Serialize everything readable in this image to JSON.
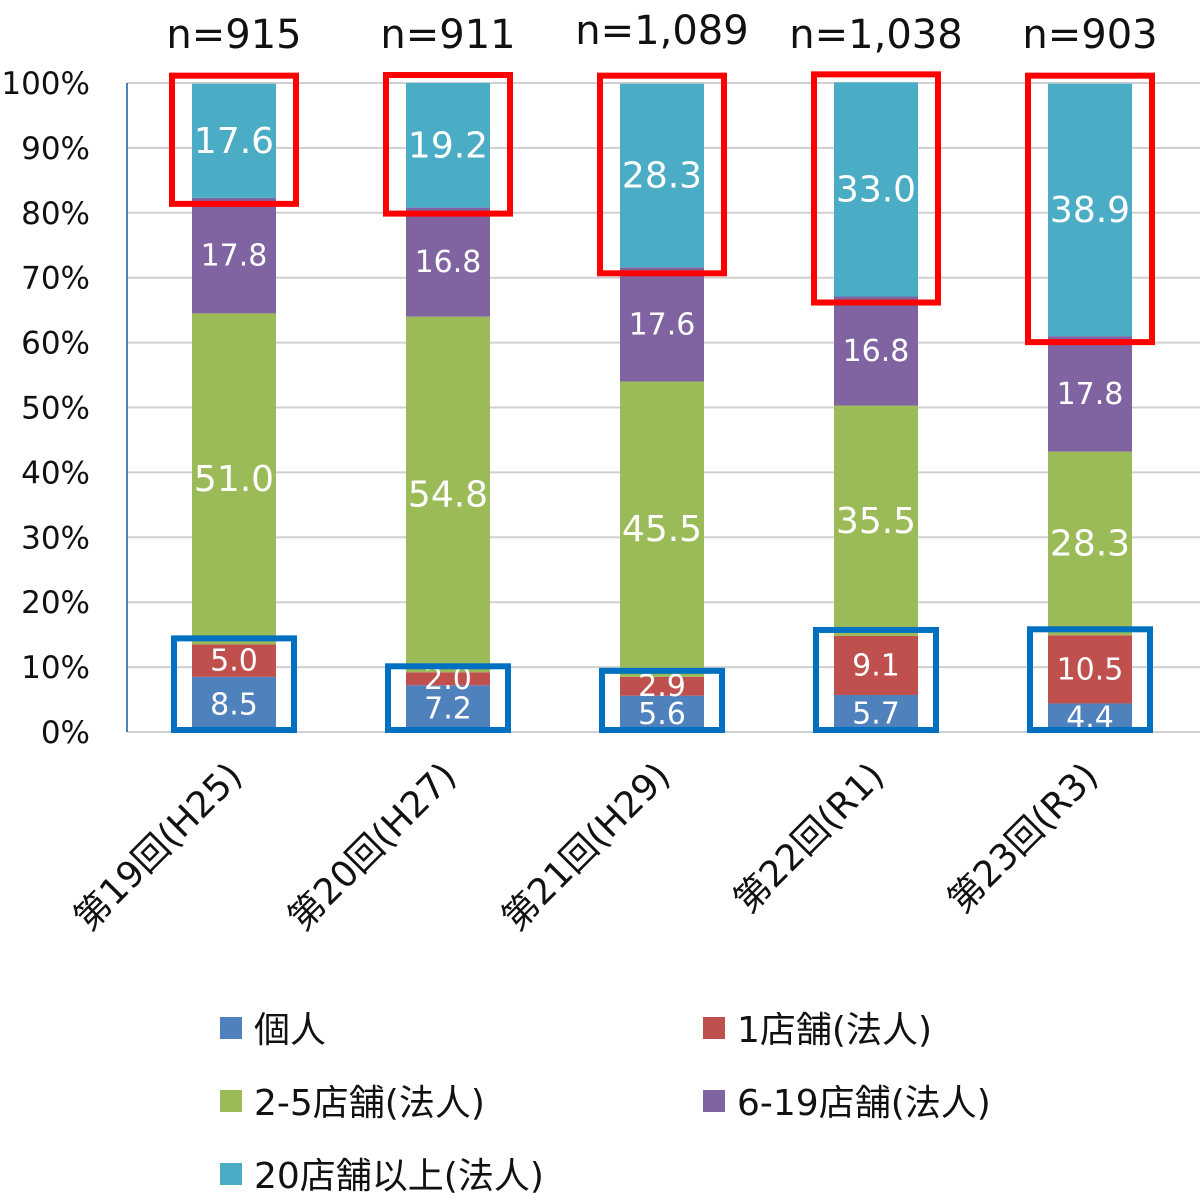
{
  "chart_data": {
    "type": "bar",
    "stacked": true,
    "percent": true,
    "categories": [
      "第19回(H25)",
      "第20回(H27)",
      "第21回(H29)",
      "第22回(R1)",
      "第23回(R3)"
    ],
    "sample_sizes": [
      "n=915",
      "n=911",
      "n=1,089",
      "n=1,038",
      "n=903"
    ],
    "series": [
      {
        "name": "個人",
        "color": "#4F81BD",
        "values": [
          8.5,
          7.2,
          5.6,
          5.7,
          4.4
        ],
        "labels": [
          "8.5",
          "7.2",
          "5.6",
          "5.7",
          "4.4"
        ]
      },
      {
        "name": "1店舗(法人)",
        "color": "#C0504D",
        "values": [
          5.0,
          2.0,
          2.9,
          9.1,
          10.5
        ],
        "labels": [
          "5.0",
          "2.0",
          "2.9",
          "9.1",
          "10.5"
        ]
      },
      {
        "name": "2-5店舗(法人)",
        "color": "#9BBB59",
        "values": [
          51.0,
          54.8,
          45.5,
          35.5,
          28.3
        ],
        "labels": [
          "51.0",
          "54.8",
          "45.5",
          "35.5",
          "28.3"
        ]
      },
      {
        "name": "6-19店舗(法人)",
        "color": "#8064A2",
        "values": [
          17.8,
          16.8,
          17.6,
          16.8,
          17.8
        ],
        "labels": [
          "17.8",
          "16.8",
          "17.6",
          "16.8",
          "17.8"
        ]
      },
      {
        "name": "20店舗以上(法人)",
        "color": "#4BACC6",
        "values": [
          17.6,
          19.2,
          28.3,
          33.0,
          38.9
        ],
        "labels": [
          "17.6",
          "19.2",
          "28.3",
          "33.0",
          "38.9"
        ]
      }
    ],
    "yticks": [
      "0%",
      "10%",
      "20%",
      "30%",
      "40%",
      "50%",
      "60%",
      "70%",
      "80%",
      "90%",
      "100%"
    ],
    "ylim": [
      0,
      100
    ],
    "grid": true,
    "legend_position": "bottom",
    "highlight_colors": {
      "top_group": "#FF0000",
      "bottom_group": "#0070C0"
    }
  }
}
